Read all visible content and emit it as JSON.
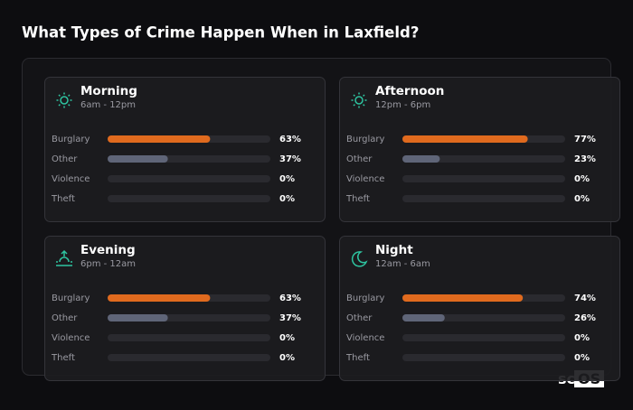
{
  "title": "What Types of Crime Happen When in Laxfield?",
  "xlim": [
    0,
    100
  ],
  "categories": [
    {
      "label": "Burglary",
      "color": "#e06a1e"
    },
    {
      "label": "Other",
      "color": "#5f6578"
    },
    {
      "label": "Violence",
      "color": "#5f6578"
    },
    {
      "label": "Theft",
      "color": "#5f6578"
    }
  ],
  "panels": [
    {
      "name": "Morning",
      "time": "6am - 12pm",
      "values": [
        63,
        37,
        0,
        0
      ],
      "value_labels": [
        "63%",
        "37%",
        "0%",
        "0%"
      ]
    },
    {
      "name": "Afternoon",
      "time": "12pm - 6pm",
      "values": [
        77,
        23,
        0,
        0
      ],
      "value_labels": [
        "77%",
        "23%",
        "0%",
        "0%"
      ]
    },
    {
      "name": "Evening",
      "time": "6pm - 12am",
      "values": [
        63,
        37,
        0,
        0
      ],
      "value_labels": [
        "63%",
        "37%",
        "0%",
        "0%"
      ]
    },
    {
      "name": "Night",
      "time": "12am - 6am",
      "values": [
        74,
        26,
        0,
        0
      ],
      "value_labels": [
        "74%",
        "26%",
        "0%",
        "0%"
      ]
    }
  ],
  "logo": "scOS"
}
